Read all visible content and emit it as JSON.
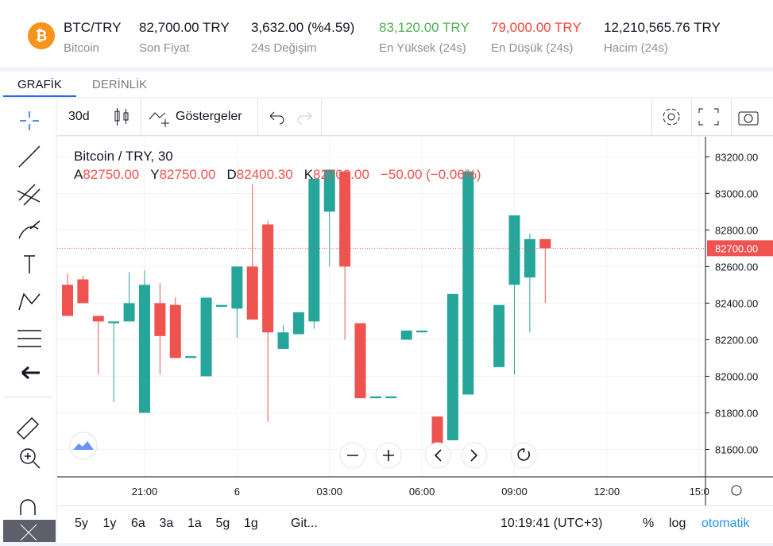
{
  "ticker": {
    "pair": "BTC/TRY",
    "name": "Bitcoin",
    "stats": [
      {
        "value": "82,700.00 TRY",
        "label": "Son Fiyat"
      },
      {
        "value": "3,632.00 (%4.59)",
        "label": "24s Değişim"
      },
      {
        "value": "83,120.00 TRY",
        "label": "En Yüksek (24s)"
      },
      {
        "value": "79,000.00 TRY",
        "label": "En Düşük (24s)"
      },
      {
        "value": "12,210,565.76 TRY",
        "label": "Hacim (24s)"
      }
    ]
  },
  "tabs": [
    "GRAFİK",
    "DERİNLİK"
  ],
  "toolbar": {
    "interval": "30d",
    "indicators": "Göstergeler"
  },
  "legend": {
    "title": "Bitcoin / TRY, 30",
    "fields": [
      {
        "key": "A",
        "value": "82750.00"
      },
      {
        "key": "Y",
        "value": "82750.00"
      },
      {
        "key": "D",
        "value": "82400.30"
      },
      {
        "key": "K",
        "value": "82700.00"
      }
    ],
    "change": "−50.00 (−0.06%)"
  },
  "bottom": {
    "ranges": [
      "5y",
      "1y",
      "6a",
      "3a",
      "1a",
      "5g",
      "1g"
    ],
    "goto": "Git...",
    "clock": "10:19:41 (UTC+3)",
    "options": [
      "%",
      "log",
      "otomatik"
    ]
  },
  "chart_data": {
    "type": "candlestick",
    "up_color": "#26a69a",
    "down_color": "#ef5350",
    "x": [
      0,
      1,
      2,
      3,
      4,
      5,
      6,
      7,
      8,
      9,
      10,
      11,
      12,
      13,
      14,
      15,
      16,
      17,
      18,
      19,
      20,
      21,
      22,
      23,
      24,
      25,
      26,
      28,
      29,
      30,
      31
    ],
    "open": [
      82500,
      82530,
      82330,
      82290,
      82300,
      81800,
      82400,
      82390,
      82100,
      82000,
      82380,
      82370,
      82600,
      82830,
      82150,
      82230,
      82300,
      82900,
      83120,
      82290,
      81880,
      81880,
      82200,
      82240,
      81780,
      81650,
      81900,
      82050,
      82500,
      82540,
      82750
    ],
    "high": [
      82560,
      82550,
      82330,
      82300,
      82570,
      82580,
      82510,
      82430,
      82110,
      82430,
      82390,
      82600,
      83050,
      82850,
      82280,
      82350,
      83080,
      83130,
      83120,
      82290,
      81890,
      81890,
      82250,
      82250,
      81780,
      82450,
      83130,
      82390,
      82880,
      82780,
      82750
    ],
    "low": [
      82330,
      82400,
      82010,
      81860,
      82300,
      81800,
      82010,
      82100,
      82100,
      82000,
      82380,
      82210,
      82310,
      81750,
      82150,
      82230,
      82260,
      82600,
      82200,
      81880,
      81880,
      81880,
      82200,
      82240,
      81620,
      81650,
      81900,
      82050,
      82010,
      82240,
      82400
    ],
    "close": [
      82330,
      82400,
      82300,
      82300,
      82400,
      82500,
      82220,
      82100,
      82110,
      82430,
      82390,
      82600,
      82310,
      82240,
      82240,
      82350,
      83080,
      83130,
      82600,
      81880,
      81890,
      81890,
      82250,
      82250,
      81620,
      82450,
      83120,
      82390,
      82880,
      82750,
      82700
    ],
    "xlim": [
      -0.67,
      41.4
    ],
    "xticks": [
      {
        "value": 5,
        "label": "21:00"
      },
      {
        "value": 11,
        "label": "6"
      },
      {
        "value": 17,
        "label": "03:00"
      },
      {
        "value": 23,
        "label": "06:00"
      },
      {
        "value": 29,
        "label": "09:00"
      },
      {
        "value": 35,
        "label": "12:00"
      },
      {
        "value": 41,
        "label": "15:0"
      }
    ],
    "ylim": [
      81450,
      83310
    ],
    "yticks": [
      {
        "value": 81600,
        "label": "81600.00"
      },
      {
        "value": 81800,
        "label": "81800.00"
      },
      {
        "value": 82000,
        "label": "82000.00"
      },
      {
        "value": 82200,
        "label": "82200.00"
      },
      {
        "value": 82400,
        "label": "82400.00"
      },
      {
        "value": 82600,
        "label": "82600.00"
      },
      {
        "value": 82800,
        "label": "82800.00"
      },
      {
        "value": 83000,
        "label": "83000.00"
      },
      {
        "value": 83200,
        "label": "83200.00"
      }
    ],
    "last_price": {
      "value": 82700,
      "label": "82700.00"
    },
    "grid": true
  }
}
